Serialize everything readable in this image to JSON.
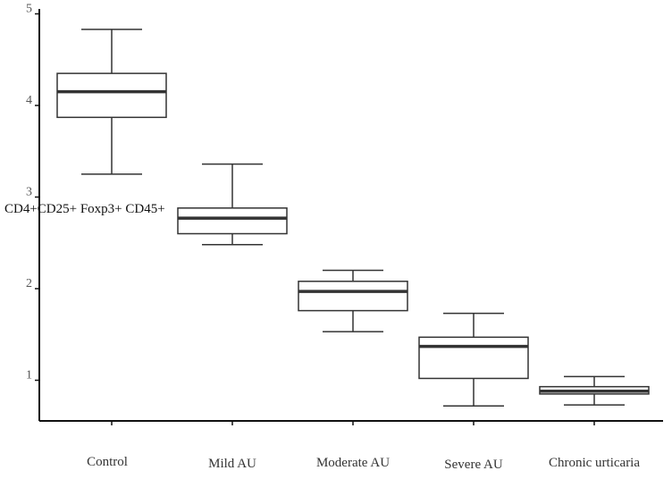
{
  "chart_data": {
    "type": "box",
    "ylabel": "CD4+CD25+ Foxp3+ CD45+",
    "ylim": [
      0.5,
      5
    ],
    "yticks": [
      1,
      2,
      3,
      4,
      5
    ],
    "grid": false,
    "categories": [
      "Control",
      "Mild AU",
      "Moderate AU",
      "Severe AU",
      "Chronic urticaria"
    ],
    "boxes": [
      {
        "category": "Control",
        "whisker_low": 3.25,
        "q1": 3.87,
        "median": 4.15,
        "q3": 4.35,
        "whisker_high": 4.83
      },
      {
        "category": "Mild AU",
        "whisker_low": 2.48,
        "q1": 2.6,
        "median": 2.77,
        "q3": 2.88,
        "whisker_high": 3.36
      },
      {
        "category": "Moderate AU",
        "whisker_low": 1.53,
        "q1": 1.76,
        "median": 1.97,
        "q3": 2.08,
        "whisker_high": 2.2
      },
      {
        "category": "Severe AU",
        "whisker_low": 0.72,
        "q1": 1.02,
        "median": 1.37,
        "q3": 1.47,
        "whisker_high": 1.73
      },
      {
        "category": "Chronic urticaria",
        "whisker_low": 0.73,
        "q1": 0.85,
        "median": 0.88,
        "q3": 0.93,
        "whisker_high": 1.04
      }
    ],
    "colors": {
      "box_stroke": "#333333",
      "axis": "#111111",
      "median": "#333333"
    }
  }
}
